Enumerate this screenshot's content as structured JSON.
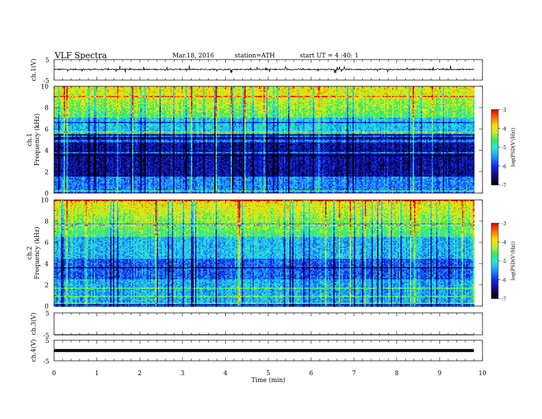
{
  "header": {
    "title": "VLF Spectra",
    "date": "Mar.18, 2016",
    "station": "station=ATH",
    "start": "start UT = 4 :40: 1"
  },
  "chart_data": {
    "type": "heatmap",
    "time_axis": {
      "label": "Time (min)",
      "range": [
        0,
        10
      ],
      "ticks": [
        "0",
        "1",
        "2",
        "3",
        "4",
        "5",
        "6",
        "7",
        "8",
        "9",
        "10"
      ],
      "data_end_min": 9.8
    },
    "panels": [
      {
        "type": "line",
        "ylabel": "ch.1(V)",
        "ylim": [
          -5,
          5
        ],
        "yticks": [
          "5",
          "-5"
        ],
        "color": "#000000",
        "description_values": {
          "baseline_v": 0.2,
          "noise_amp_v": 0.6
        }
      },
      {
        "type": "heatmap",
        "ylabel": "ch.1",
        "ylabel2": "Frequency (kHz)",
        "ylim": [
          0,
          10
        ],
        "yticks": [
          "0",
          "2",
          "4",
          "6",
          "8",
          "10"
        ],
        "colorbar": {
          "label": "log(PSD(V²/Hz))",
          "range": [
            -7,
            -3
          ],
          "ticks": [
            "-3",
            "-4",
            "-5",
            "-6",
            "-7"
          ]
        }
      },
      {
        "type": "heatmap",
        "ylabel": "ch.2",
        "ylabel2": "Frequency (kHz)",
        "ylim": [
          0,
          10
        ],
        "yticks": [
          "0",
          "2",
          "4",
          "6",
          "8",
          "10"
        ],
        "colorbar": {
          "label": "log(PSD(V²/Hz))",
          "range": [
            -7,
            -3
          ],
          "ticks": [
            "-3",
            "-4",
            "-5",
            "-6",
            "-7"
          ]
        }
      },
      {
        "type": "line",
        "ylabel": "ch.3(V)",
        "ylim": [
          -5,
          5
        ],
        "yticks": [
          "5",
          "-5"
        ],
        "color": "#000000",
        "description_values": {
          "baseline_v": -5,
          "noise_amp_v": 0
        }
      },
      {
        "type": "line",
        "ylabel": "ch.4(V)",
        "ylim": [
          -5,
          5
        ],
        "yticks": [
          "5",
          "-5"
        ],
        "color": "#000000",
        "description_values": {
          "baseline_v": 0,
          "noise_amp_v": 0.1
        }
      }
    ]
  }
}
